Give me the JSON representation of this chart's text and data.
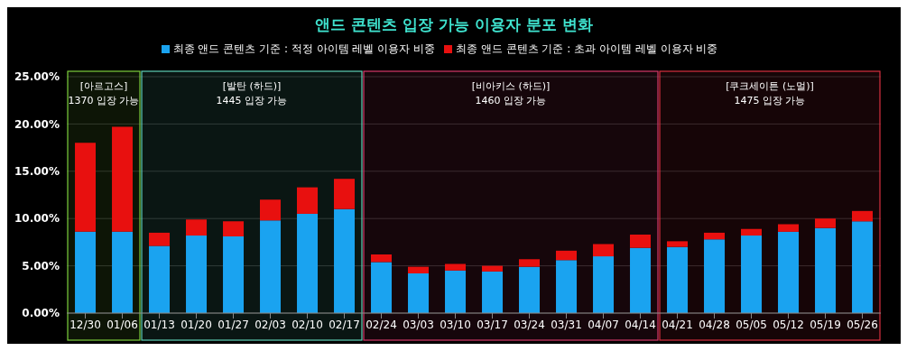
{
  "chart_data": {
    "type": "bar",
    "title": "앤드 콘텐츠 입장 가능 이용자 분포 변화",
    "categories": [
      "12/30",
      "01/06",
      "01/13",
      "01/20",
      "01/27",
      "02/03",
      "02/10",
      "02/17",
      "02/24",
      "03/03",
      "03/10",
      "03/17",
      "03/24",
      "03/31",
      "04/07",
      "04/14",
      "04/21",
      "04/28",
      "05/05",
      "05/12",
      "05/19",
      "05/26"
    ],
    "series": [
      {
        "name": "최종 앤드 콘텐츠 기준 : 적정 아이템 레벨 이용자 비중",
        "color": "#1aa3f0",
        "values": [
          8.6,
          8.6,
          7.1,
          8.2,
          8.1,
          9.8,
          10.5,
          11.0,
          5.4,
          4.2,
          4.5,
          4.4,
          4.9,
          5.6,
          6.0,
          6.9,
          7.0,
          7.8,
          8.2,
          8.6,
          9.0,
          9.7
        ]
      },
      {
        "name": "최종 앤드 콘텐츠 기준 : 초과 아이템 레벨 이용자 비중",
        "color": "#e8100f",
        "values": [
          9.4,
          11.1,
          1.4,
          1.7,
          1.6,
          2.2,
          2.8,
          3.2,
          0.8,
          0.7,
          0.7,
          0.6,
          0.8,
          1.0,
          1.3,
          1.4,
          0.6,
          0.7,
          0.7,
          0.8,
          1.0,
          1.1
        ]
      }
    ],
    "stacked": true,
    "ylim": [
      0,
      25
    ],
    "yticks": [
      {
        "value": 0,
        "label": "0.00%"
      },
      {
        "value": 5,
        "label": "5.00%"
      },
      {
        "value": 10,
        "label": "10.00%"
      },
      {
        "value": 15,
        "label": "15.00%"
      },
      {
        "value": 20,
        "label": "20.00%"
      },
      {
        "value": 25,
        "label": "25.00%"
      }
    ],
    "grid": "y",
    "legend": "top",
    "bands": [
      {
        "axis": "x",
        "from": "12/30",
        "to": "01/06",
        "label": "[아르고스]\n1370 입장 가능",
        "color": "#7ccf3c"
      },
      {
        "axis": "x",
        "from": "01/13",
        "to": "02/17",
        "label": "[발탄 (하드)]\n1445 입장 가능",
        "color": "#5fd3b8"
      },
      {
        "axis": "x",
        "from": "02/24",
        "to": "04/14",
        "label": "[비아키스 (하드)]\n1460 입장 가능",
        "color": "#d8396a"
      },
      {
        "axis": "x",
        "from": "04/21",
        "to": "05/26",
        "label": "[쿠크세이튼 (노멀)]\n1475 입장 가능",
        "color": "#d93040"
      }
    ]
  }
}
